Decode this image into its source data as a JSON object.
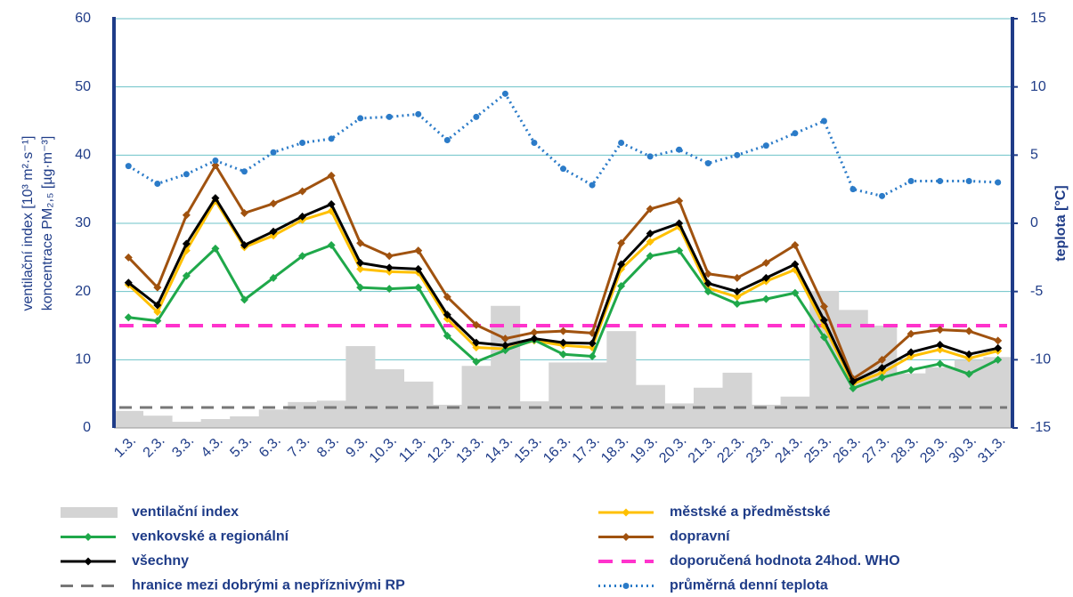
{
  "chart_data": {
    "type": "combo",
    "ylabel": [
      "ventilační index [10³ m²·s⁻¹]",
      "koncentrace PM₂,₅ [µg·m⁻³]"
    ],
    "y2label": "teplota [°C]",
    "categories": [
      "1.3.",
      "2.3.",
      "3.3.",
      "4.3.",
      "5.3.",
      "6.3.",
      "7.3.",
      "8.3.",
      "9.3.",
      "10.3.",
      "11.3.",
      "12.3.",
      "13.3.",
      "14.3.",
      "15.3.",
      "16.3.",
      "17.3.",
      "18.3.",
      "19.3.",
      "20.3.",
      "21.3.",
      "22.3.",
      "23.3.",
      "24.3.",
      "25.3.",
      "26.3.",
      "27.3.",
      "28.3.",
      "29.3.",
      "30.3.",
      "31.3."
    ],
    "ylim": [
      0,
      60
    ],
    "yticks": [
      0,
      10,
      20,
      30,
      40,
      50,
      60
    ],
    "y2lim": [
      -15,
      15
    ],
    "y2ticks": [
      -15,
      -10,
      -5,
      0,
      5,
      10,
      15
    ],
    "grid": true,
    "series": [
      {
        "name": "ventilační index",
        "kind": "bar",
        "color": "#d4d4d4",
        "values": [
          2.5,
          1.8,
          0.9,
          1.3,
          1.7,
          2.7,
          3.8,
          4.0,
          12.0,
          8.6,
          6.8,
          3.4,
          9.1,
          17.9,
          3.9,
          9.6,
          9.6,
          14.2,
          6.3,
          3.6,
          5.9,
          8.1,
          3.4,
          4.6,
          20.1,
          17.3,
          15.0,
          8.0,
          8.9,
          10.0,
          10.4
        ]
      },
      {
        "name": "městské a předměstské",
        "kind": "line",
        "color": "#ffc000",
        "values": [
          21,
          17,
          26,
          33.3,
          26.5,
          28.2,
          30.5,
          31.8,
          23.3,
          22.9,
          22.8,
          16,
          11.8,
          11.6,
          12.8,
          12.1,
          11.8,
          23.3,
          27.3,
          29.5,
          20.5,
          19.2,
          21.5,
          23.2,
          15,
          6.5,
          8.1,
          10.5,
          11.5,
          10.2,
          11.3
        ]
      },
      {
        "name": "venkovské a regionální",
        "kind": "line",
        "color": "#1fa84a",
        "values": [
          16.2,
          15.7,
          22.3,
          26.3,
          18.8,
          22,
          25.2,
          26.8,
          20.6,
          20.4,
          20.6,
          13.5,
          9.7,
          11.4,
          12.9,
          10.8,
          10.5,
          20.8,
          25.2,
          26,
          20,
          18.2,
          18.9,
          19.8,
          13.3,
          5.8,
          7.4,
          8.5,
          9.4,
          7.9,
          10
        ]
      },
      {
        "name": "dopravní",
        "kind": "line",
        "color": "#a0520f",
        "values": [
          25,
          20.6,
          31.2,
          38.5,
          31.5,
          32.9,
          34.7,
          37,
          27.1,
          25.2,
          26,
          19.2,
          15.1,
          13.1,
          14,
          14.2,
          13.9,
          27.1,
          32.1,
          33.3,
          22.6,
          22,
          24.2,
          26.8,
          17.8,
          7.2,
          10,
          13.8,
          14.4,
          14.2,
          12.8
        ]
      },
      {
        "name": "všechny",
        "kind": "line",
        "color": "#000000",
        "values": [
          21.3,
          18,
          27,
          33.7,
          26.8,
          28.8,
          31,
          32.8,
          24.2,
          23.5,
          23.3,
          16.6,
          12.5,
          12.1,
          13.1,
          12.5,
          12.4,
          24,
          28.5,
          30,
          21.2,
          20,
          22,
          24,
          15.8,
          6.8,
          8.8,
          11.1,
          12.2,
          10.8,
          11.7
        ]
      },
      {
        "name": "průměrná denní teplota",
        "kind": "dotted",
        "axis": "y2",
        "color": "#2b7bc8",
        "values": [
          4.2,
          2.9,
          3.6,
          4.6,
          3.8,
          5.2,
          5.9,
          6.2,
          7.7,
          7.8,
          8.0,
          6.1,
          7.8,
          9.5,
          5.9,
          4.0,
          2.8,
          5.9,
          4.9,
          5.4,
          4.4,
          5.0,
          5.7,
          6.6,
          7.5,
          2.5,
          2.0,
          3.1,
          3.1,
          3.1,
          3.0
        ]
      }
    ],
    "reference_lines": [
      {
        "name": "doporučená hodnota 24hod. WHO",
        "color": "#ff33cc",
        "value": 15
      },
      {
        "name": "hranice mezi dobrými a nepříznivými RP",
        "color": "#777777",
        "value": 3
      }
    ]
  }
}
